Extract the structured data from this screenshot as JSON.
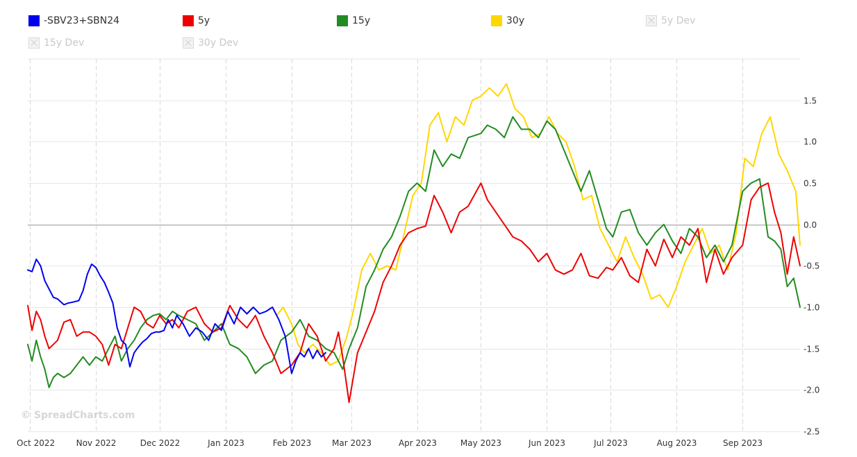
{
  "legend": {
    "items": [
      {
        "label": "-SBV23+SBN24",
        "color": "#0000ee",
        "visible": true
      },
      {
        "label": "5y",
        "color": "#ee0000",
        "visible": true
      },
      {
        "label": "15y",
        "color": "#228b22",
        "visible": true
      },
      {
        "label": "30y",
        "color": "#ffd700",
        "visible": true
      },
      {
        "label": "5y Dev",
        "color": "#c8c8c8",
        "visible": false
      },
      {
        "label": "15y Dev",
        "color": "#c8c8c8",
        "visible": false
      },
      {
        "label": "30y Dev",
        "color": "#c8c8c8",
        "visible": false
      }
    ]
  },
  "watermark": "© SpreadCharts.com",
  "chart_data": {
    "type": "line",
    "grid": true,
    "legend_position": "top",
    "x_tick_labels": [
      "Oct 2022",
      "Nov 2022",
      "Dec 2022",
      "Jan 2023",
      "Feb 2023",
      "Mar 2023",
      "Apr 2023",
      "May 2023",
      "Jun 2023",
      "Jul 2023",
      "Aug 2023",
      "Sep 2023"
    ],
    "x_ticks": [
      "2022-10-01",
      "2022-11-01",
      "2022-12-01",
      "2023-01-01",
      "2023-02-01",
      "2023-03-01",
      "2023-04-01",
      "2023-05-01",
      "2023-06-01",
      "2023-07-01",
      "2023-08-01",
      "2023-09-01"
    ],
    "xlim": [
      "2022-09-30",
      "2023-09-28"
    ],
    "y_tick_labels": [
      "1.5",
      "1.0",
      "0.5",
      "0.0",
      "-0.5",
      "-1.0",
      "-1.5",
      "-2.0",
      "-2.5"
    ],
    "y_ticks": [
      1.5,
      1.0,
      0.5,
      0.0,
      -0.5,
      -1.0,
      -1.5,
      -2.0,
      -2.5
    ],
    "ylim": [
      -2.5,
      2.0
    ],
    "series": [
      {
        "name": "-SBV23+SBN24",
        "color": "#0000ee",
        "x": [
          "2022-09-30",
          "2022-10-02",
          "2022-10-04",
          "2022-10-06",
          "2022-10-08",
          "2022-10-10",
          "2022-10-12",
          "2022-10-14",
          "2022-10-17",
          "2022-10-19",
          "2022-10-21",
          "2022-10-24",
          "2022-10-26",
          "2022-10-28",
          "2022-10-30",
          "2022-11-01",
          "2022-11-03",
          "2022-11-05",
          "2022-11-07",
          "2022-11-09",
          "2022-11-11",
          "2022-11-13",
          "2022-11-15",
          "2022-11-17",
          "2022-11-19",
          "2022-11-21",
          "2022-11-23",
          "2022-11-25",
          "2022-11-27",
          "2022-11-29",
          "2022-12-01",
          "2022-12-03",
          "2022-12-05",
          "2022-12-07",
          "2022-12-09",
          "2022-12-12",
          "2022-12-15",
          "2022-12-18",
          "2022-12-21",
          "2022-12-24",
          "2022-12-27",
          "2022-12-30",
          "2023-01-02",
          "2023-01-05",
          "2023-01-08",
          "2023-01-11",
          "2023-01-14",
          "2023-01-17",
          "2023-01-20",
          "2023-01-23",
          "2023-01-26",
          "2023-01-29",
          "2023-02-01",
          "2023-02-03",
          "2023-02-05",
          "2023-02-07",
          "2023-02-09",
          "2023-02-11",
          "2023-02-13",
          "2023-02-15",
          "2023-02-17"
        ],
        "values": [
          -0.55,
          -0.57,
          -0.42,
          -0.5,
          -0.68,
          -0.78,
          -0.88,
          -0.9,
          -0.97,
          -0.95,
          -0.94,
          -0.92,
          -0.8,
          -0.6,
          -0.48,
          -0.52,
          -0.62,
          -0.7,
          -0.82,
          -0.95,
          -1.25,
          -1.4,
          -1.45,
          -1.72,
          -1.55,
          -1.48,
          -1.42,
          -1.38,
          -1.32,
          -1.3,
          -1.3,
          -1.28,
          -1.15,
          -1.25,
          -1.1,
          -1.2,
          -1.35,
          -1.25,
          -1.3,
          -1.4,
          -1.2,
          -1.28,
          -1.05,
          -1.2,
          -1.0,
          -1.08,
          -1.0,
          -1.08,
          -1.05,
          -1.0,
          -1.15,
          -1.35,
          -1.8,
          -1.65,
          -1.55,
          -1.6,
          -1.5,
          -1.62,
          -1.52,
          -1.6,
          -1.55
        ]
      },
      {
        "name": "5y",
        "color": "#ee0000",
        "x": [
          "2022-09-30",
          "2022-10-02",
          "2022-10-04",
          "2022-10-06",
          "2022-10-08",
          "2022-10-10",
          "2022-10-12",
          "2022-10-14",
          "2022-10-17",
          "2022-10-20",
          "2022-10-23",
          "2022-10-26",
          "2022-10-29",
          "2022-11-01",
          "2022-11-04",
          "2022-11-07",
          "2022-11-10",
          "2022-11-13",
          "2022-11-16",
          "2022-11-19",
          "2022-11-22",
          "2022-11-25",
          "2022-11-28",
          "2022-12-01",
          "2022-12-04",
          "2022-12-07",
          "2022-12-10",
          "2022-12-14",
          "2022-12-18",
          "2022-12-22",
          "2022-12-26",
          "2022-12-30",
          "2023-01-03",
          "2023-01-07",
          "2023-01-11",
          "2023-01-15",
          "2023-01-19",
          "2023-01-23",
          "2023-01-27",
          "2023-02-01",
          "2023-02-05",
          "2023-02-09",
          "2023-02-13",
          "2023-02-17",
          "2023-02-21",
          "2023-02-23",
          "2023-02-25",
          "2023-02-28",
          "2023-03-04",
          "2023-03-08",
          "2023-03-12",
          "2023-03-16",
          "2023-03-20",
          "2023-03-24",
          "2023-03-28",
          "2023-04-01",
          "2023-04-05",
          "2023-04-09",
          "2023-04-13",
          "2023-04-17",
          "2023-04-21",
          "2023-04-25",
          "2023-05-01",
          "2023-05-04",
          "2023-05-08",
          "2023-05-12",
          "2023-05-16",
          "2023-05-20",
          "2023-05-24",
          "2023-05-28",
          "2023-06-01",
          "2023-06-05",
          "2023-06-09",
          "2023-06-13",
          "2023-06-17",
          "2023-06-21",
          "2023-06-25",
          "2023-06-29",
          "2023-07-02",
          "2023-07-06",
          "2023-07-10",
          "2023-07-14",
          "2023-07-18",
          "2023-07-22",
          "2023-07-26",
          "2023-07-30",
          "2023-08-03",
          "2023-08-07",
          "2023-08-11",
          "2023-08-15",
          "2023-08-19",
          "2023-08-23",
          "2023-08-27",
          "2023-09-01",
          "2023-09-05",
          "2023-09-09",
          "2023-09-13",
          "2023-09-16",
          "2023-09-19",
          "2023-09-22",
          "2023-09-25",
          "2023-09-28"
        ],
        "values": [
          -0.98,
          -1.28,
          -1.05,
          -1.15,
          -1.35,
          -1.5,
          -1.45,
          -1.4,
          -1.18,
          -1.15,
          -1.35,
          -1.3,
          -1.3,
          -1.35,
          -1.45,
          -1.7,
          -1.45,
          -1.5,
          -1.25,
          -1.0,
          -1.05,
          -1.2,
          -1.25,
          -1.1,
          -1.2,
          -1.15,
          -1.25,
          -1.05,
          -1.0,
          -1.2,
          -1.3,
          -1.25,
          -0.98,
          -1.15,
          -1.25,
          -1.1,
          -1.35,
          -1.55,
          -1.8,
          -1.7,
          -1.55,
          -1.2,
          -1.35,
          -1.65,
          -1.5,
          -1.3,
          -1.6,
          -2.15,
          -1.55,
          -1.3,
          -1.05,
          -0.7,
          -0.5,
          -0.25,
          -0.1,
          -0.05,
          -0.02,
          0.35,
          0.15,
          -0.1,
          0.15,
          0.22,
          0.5,
          0.3,
          0.15,
          0.0,
          -0.15,
          -0.2,
          -0.3,
          -0.45,
          -0.35,
          -0.55,
          -0.6,
          -0.55,
          -0.35,
          -0.62,
          -0.65,
          -0.52,
          -0.55,
          -0.4,
          -0.62,
          -0.7,
          -0.3,
          -0.5,
          -0.18,
          -0.4,
          -0.15,
          -0.25,
          -0.05,
          -0.7,
          -0.3,
          -0.6,
          -0.4,
          -0.25,
          0.3,
          0.45,
          0.5,
          0.15,
          -0.1,
          -0.6,
          -0.15,
          -0.5
        ]
      },
      {
        "name": "15y",
        "color": "#228b22",
        "x": [
          "2022-09-30",
          "2022-10-02",
          "2022-10-04",
          "2022-10-06",
          "2022-10-08",
          "2022-10-10",
          "2022-10-12",
          "2022-10-14",
          "2022-10-17",
          "2022-10-20",
          "2022-10-23",
          "2022-10-26",
          "2022-10-29",
          "2022-11-01",
          "2022-11-04",
          "2022-11-07",
          "2022-11-10",
          "2022-11-13",
          "2022-11-16",
          "2022-11-19",
          "2022-11-22",
          "2022-11-25",
          "2022-11-28",
          "2022-12-01",
          "2022-12-04",
          "2022-12-07",
          "2022-12-10",
          "2022-12-14",
          "2022-12-18",
          "2022-12-22",
          "2022-12-26",
          "2022-12-30",
          "2023-01-03",
          "2023-01-07",
          "2023-01-11",
          "2023-01-15",
          "2023-01-19",
          "2023-01-23",
          "2023-01-27",
          "2023-02-01",
          "2023-02-05",
          "2023-02-09",
          "2023-02-13",
          "2023-02-17",
          "2023-02-21",
          "2023-02-23",
          "2023-02-25",
          "2023-02-28",
          "2023-03-04",
          "2023-03-08",
          "2023-03-12",
          "2023-03-16",
          "2023-03-20",
          "2023-03-24",
          "2023-03-28",
          "2023-04-01",
          "2023-04-05",
          "2023-04-09",
          "2023-04-13",
          "2023-04-17",
          "2023-04-21",
          "2023-04-25",
          "2023-05-01",
          "2023-05-04",
          "2023-05-08",
          "2023-05-12",
          "2023-05-16",
          "2023-05-20",
          "2023-05-24",
          "2023-05-28",
          "2023-06-01",
          "2023-06-05",
          "2023-06-09",
          "2023-06-13",
          "2023-06-17",
          "2023-06-21",
          "2023-06-25",
          "2023-06-29",
          "2023-07-02",
          "2023-07-06",
          "2023-07-10",
          "2023-07-14",
          "2023-07-18",
          "2023-07-22",
          "2023-07-26",
          "2023-07-30",
          "2023-08-03",
          "2023-08-07",
          "2023-08-11",
          "2023-08-15",
          "2023-08-19",
          "2023-08-23",
          "2023-08-27",
          "2023-09-01",
          "2023-09-05",
          "2023-09-09",
          "2023-09-13",
          "2023-09-16",
          "2023-09-19",
          "2023-09-22",
          "2023-09-25",
          "2023-09-28"
        ],
        "values": [
          -1.45,
          -1.65,
          -1.4,
          -1.6,
          -1.75,
          -1.97,
          -1.85,
          -1.8,
          -1.85,
          -1.8,
          -1.7,
          -1.6,
          -1.7,
          -1.6,
          -1.65,
          -1.5,
          -1.35,
          -1.65,
          -1.5,
          -1.4,
          -1.25,
          -1.15,
          -1.1,
          -1.08,
          -1.15,
          -1.05,
          -1.1,
          -1.15,
          -1.2,
          -1.4,
          -1.3,
          -1.2,
          -1.45,
          -1.5,
          -1.6,
          -1.8,
          -1.7,
          -1.65,
          -1.4,
          -1.3,
          -1.15,
          -1.35,
          -1.4,
          -1.5,
          -1.55,
          -1.65,
          -1.75,
          -1.5,
          -1.25,
          -0.75,
          -0.55,
          -0.3,
          -0.15,
          0.1,
          0.4,
          0.5,
          0.4,
          0.9,
          0.7,
          0.85,
          0.8,
          1.05,
          1.1,
          1.2,
          1.15,
          1.05,
          1.3,
          1.15,
          1.15,
          1.05,
          1.25,
          1.15,
          0.9,
          0.65,
          0.4,
          0.65,
          0.3,
          -0.05,
          -0.15,
          0.15,
          0.18,
          -0.1,
          -0.25,
          -0.1,
          0.0,
          -0.2,
          -0.35,
          -0.05,
          -0.15,
          -0.4,
          -0.25,
          -0.45,
          -0.25,
          0.4,
          0.5,
          0.55,
          -0.15,
          -0.2,
          -0.3,
          -0.75,
          -0.65,
          -1.0
        ]
      },
      {
        "name": "30y",
        "color": "#ffd700",
        "x": [
          "2023-01-25",
          "2023-01-28",
          "2023-02-01",
          "2023-02-04",
          "2023-02-07",
          "2023-02-11",
          "2023-02-15",
          "2023-02-19",
          "2023-02-23",
          "2023-02-27",
          "2023-03-02",
          "2023-03-06",
          "2023-03-10",
          "2023-03-14",
          "2023-03-18",
          "2023-03-22",
          "2023-03-26",
          "2023-03-30",
          "2023-04-03",
          "2023-04-07",
          "2023-04-11",
          "2023-04-15",
          "2023-04-19",
          "2023-04-23",
          "2023-04-27",
          "2023-05-01",
          "2023-05-05",
          "2023-05-09",
          "2023-05-13",
          "2023-05-17",
          "2023-05-21",
          "2023-05-25",
          "2023-05-29",
          "2023-06-02",
          "2023-06-06",
          "2023-06-10",
          "2023-06-14",
          "2023-06-18",
          "2023-06-22",
          "2023-06-26",
          "2023-06-30",
          "2023-07-04",
          "2023-07-08",
          "2023-07-12",
          "2023-07-16",
          "2023-07-20",
          "2023-07-24",
          "2023-07-28",
          "2023-08-01",
          "2023-08-05",
          "2023-08-09",
          "2023-08-13",
          "2023-08-17",
          "2023-08-21",
          "2023-08-25",
          "2023-08-29",
          "2023-09-02",
          "2023-09-06",
          "2023-09-10",
          "2023-09-14",
          "2023-09-18",
          "2023-09-22",
          "2023-09-26",
          "2023-09-28"
        ],
        "values": [
          -1.1,
          -1.0,
          -1.2,
          -1.45,
          -1.55,
          -1.45,
          -1.55,
          -1.7,
          -1.65,
          -1.35,
          -1.05,
          -0.55,
          -0.35,
          -0.55,
          -0.5,
          -0.55,
          -0.1,
          0.35,
          0.5,
          1.2,
          1.35,
          1.0,
          1.3,
          1.2,
          1.5,
          1.55,
          1.65,
          1.55,
          1.7,
          1.4,
          1.3,
          1.05,
          1.1,
          1.3,
          1.1,
          1.0,
          0.7,
          0.3,
          0.35,
          -0.05,
          -0.25,
          -0.45,
          -0.15,
          -0.4,
          -0.6,
          -0.9,
          -0.85,
          -1.0,
          -0.75,
          -0.45,
          -0.25,
          -0.05,
          -0.35,
          -0.25,
          -0.55,
          -0.1,
          0.8,
          0.7,
          1.1,
          1.3,
          0.85,
          0.65,
          0.4,
          -0.25
        ]
      }
    ]
  }
}
